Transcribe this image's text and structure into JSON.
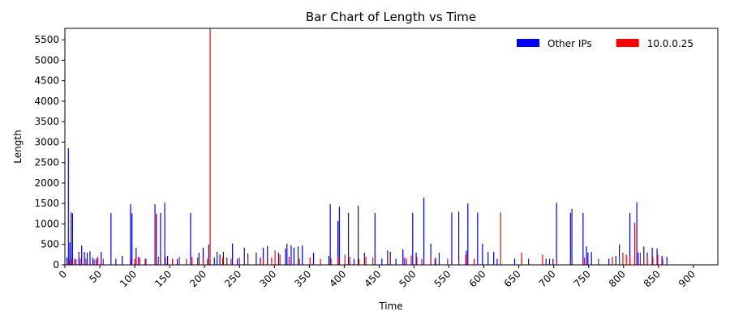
{
  "chart_data": {
    "type": "bar",
    "title": "Bar Chart of Length vs Time",
    "x_label": "Time",
    "y_label": "Length",
    "xlim": [
      0,
      935
    ],
    "ylim": [
      0,
      5780
    ],
    "xticks": [
      0,
      50,
      100,
      150,
      200,
      250,
      300,
      350,
      400,
      450,
      500,
      550,
      600,
      650,
      700,
      750,
      800,
      850,
      900
    ],
    "yticks": [
      0,
      500,
      1000,
      1500,
      2000,
      2500,
      3000,
      3500,
      4000,
      4500,
      5000,
      5500
    ],
    "grid": false,
    "legend": "upper right",
    "series": [
      {
        "name": "Other IPs",
        "color": "#0000ff",
        "x": [
          3,
          5,
          7,
          9,
          11,
          14,
          20,
          24,
          28,
          32,
          36,
          40,
          45,
          52,
          66,
          73,
          82,
          94,
          96,
          102,
          107,
          116,
          129,
          131,
          137,
          143,
          147,
          161,
          180,
          192,
          198,
          206,
          214,
          218,
          222,
          227,
          232,
          240,
          247,
          257,
          262,
          274,
          280,
          284,
          290,
          306,
          316,
          318,
          324,
          328,
          334,
          340,
          356,
          378,
          380,
          391,
          393,
          406,
          414,
          420,
          429,
          444,
          454,
          462,
          466,
          474,
          484,
          489,
          498,
          503,
          514,
          524,
          530,
          536,
          554,
          564,
          575,
          577,
          591,
          598,
          606,
          614,
          619,
          644,
          654,
          664,
          689,
          694,
          699,
          704,
          724,
          726,
          742,
          747,
          749,
          754,
          779,
          789,
          794,
          809,
          819,
          821,
          829,
          834,
          841,
          848,
          855,
          862
        ],
        "values": [
          180,
          2850,
          550,
          1280,
          1260,
          150,
          320,
          470,
          320,
          300,
          330,
          180,
          150,
          320,
          1270,
          150,
          220,
          1480,
          1260,
          420,
          180,
          150,
          1480,
          1250,
          1270,
          1520,
          220,
          150,
          1270,
          300,
          420,
          500,
          180,
          320,
          250,
          320,
          180,
          520,
          150,
          420,
          280,
          300,
          180,
          420,
          460,
          300,
          400,
          520,
          480,
          420,
          450,
          470,
          300,
          220,
          1480,
          1070,
          1420,
          1270,
          150,
          1450,
          300,
          1270,
          150,
          350,
          320,
          150,
          380,
          150,
          1270,
          300,
          1640,
          520,
          150,
          300,
          1280,
          1300,
          350,
          1500,
          1280,
          520,
          320,
          320,
          150,
          150,
          150,
          150,
          150,
          150,
          150,
          1520,
          1270,
          1370,
          1270,
          450,
          300,
          310,
          150,
          220,
          500,
          1270,
          1530,
          300,
          450,
          300,
          420,
          400,
          220,
          200
        ]
      },
      {
        "name": "10.0.0.25",
        "color": "#ff0000",
        "x": [
          6,
          10,
          16,
          22,
          30,
          42,
          47,
          55,
          95,
          100,
          105,
          115,
          129,
          134,
          144,
          154,
          164,
          174,
          182,
          190,
          198,
          204,
          208,
          226,
          238,
          250,
          262,
          284,
          296,
          301,
          308,
          321,
          336,
          351,
          366,
          381,
          391,
          401,
          408,
          421,
          431,
          441,
          466,
          486,
          496,
          504,
          511,
          524,
          531,
          548,
          564,
          574,
          586,
          624,
          654,
          684,
          704,
          724,
          744,
          764,
          784,
          794,
          799,
          804,
          809,
          816,
          824,
          829,
          834,
          842,
          849,
          856
        ],
        "values": [
          120,
          150,
          140,
          160,
          150,
          130,
          200,
          150,
          170,
          150,
          200,
          150,
          1270,
          200,
          180,
          150,
          200,
          150,
          200,
          180,
          150,
          150,
          5800,
          180,
          150,
          180,
          180,
          150,
          180,
          350,
          250,
          200,
          150,
          180,
          150,
          160,
          180,
          250,
          200,
          150,
          200,
          180,
          200,
          180,
          230,
          200,
          150,
          180,
          180,
          150,
          150,
          250,
          150,
          1280,
          300,
          250,
          150,
          150,
          180,
          150,
          200,
          160,
          300,
          250,
          200,
          1030,
          300,
          250,
          180,
          200,
          250,
          150
        ]
      }
    ]
  }
}
